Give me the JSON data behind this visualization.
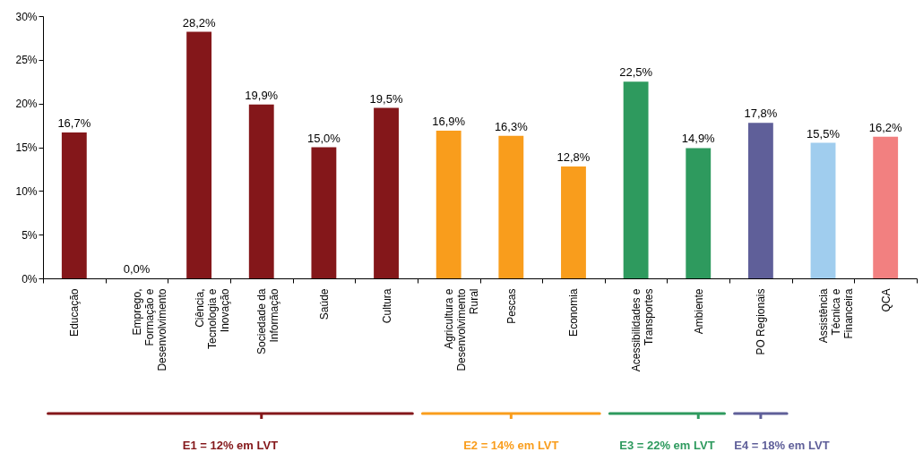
{
  "chart_data": {
    "type": "bar",
    "categories": [
      "Educação",
      "Emprego, Formação e Desenvolvimento",
      "Ciência, Tecnologia e Inovação",
      "Sociedade da Informação",
      "Saúde",
      "Cultura",
      "Agricultura e Desenvolvimento Rural",
      "Pescas",
      "Economia",
      "Acessibilidades e Transportes",
      "Ambiente",
      "PO Regionais",
      "Assistência Técnica e Financeira",
      "QCA"
    ],
    "values": [
      16.7,
      0.0,
      28.2,
      19.9,
      15.0,
      19.5,
      16.9,
      16.3,
      12.8,
      22.5,
      14.9,
      17.8,
      15.5,
      16.2
    ],
    "value_labels": [
      "16,7%",
      "0,0%",
      "28,2%",
      "19,9%",
      "15,0%",
      "19,5%",
      "16,9%",
      "16,3%",
      "12,8%",
      "22,5%",
      "14,9%",
      "17,8%",
      "15,5%",
      "16,2%"
    ],
    "colors": [
      "#84171a",
      "#84171a",
      "#84171a",
      "#84171a",
      "#84171a",
      "#84171a",
      "#f99d1c",
      "#f99d1c",
      "#f99d1c",
      "#2e9a5e",
      "#2e9a5e",
      "#5f5f99",
      "#a0cdee",
      "#f28080"
    ],
    "ylim": [
      0,
      30
    ],
    "yticks": [
      {
        "value": 0,
        "label": "0%"
      },
      {
        "value": 5,
        "label": "5%"
      },
      {
        "value": 10,
        "label": "10%"
      },
      {
        "value": 15,
        "label": "15%"
      },
      {
        "value": 20,
        "label": "20%"
      },
      {
        "value": 25,
        "label": "25%"
      },
      {
        "value": 30,
        "label": "30%"
      }
    ],
    "grid": false,
    "annotations": [
      "E1 = 12% em LVT",
      "E2 = 14% em LVT",
      "E3 = 22% em LVT",
      "E4 = 18% em LVT"
    ]
  }
}
